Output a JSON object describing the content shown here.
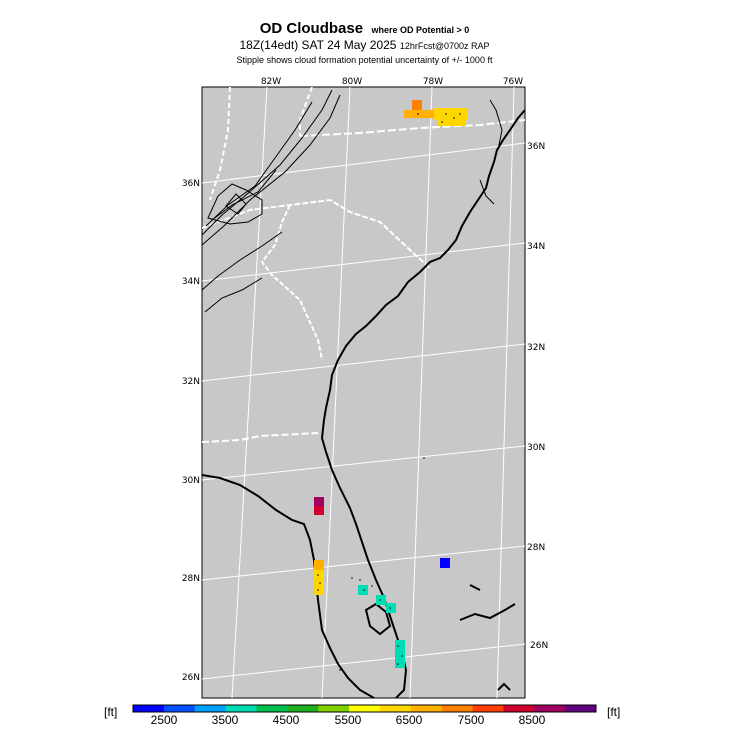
{
  "title": {
    "main": "OD Cloudbase",
    "qualifier": "where OD Potential > 0",
    "valid_time": "18Z(14edt) SAT 24 May 2025",
    "forecast": "12hrFcst@0700z RAP",
    "note": "Stipple shows cloud formation potential uncertainty of +/-  1000 ft"
  },
  "map": {
    "lon_labels": [
      "82W",
      "80W",
      "78W",
      "76W"
    ],
    "lat_labels_left": [
      "36N",
      "34N",
      "32N",
      "30N",
      "28N",
      "26N"
    ],
    "lat_labels_right": [
      "36N",
      "34N",
      "32N",
      "30N",
      "28N",
      "26N"
    ],
    "land_color": "#c8c8c8",
    "line_color": "#000000",
    "boundary_color": "#ffffff"
  },
  "colorbar": {
    "unit_left": "[ft]",
    "unit_right": "[ft]",
    "tick_labels": [
      "2500",
      "3500",
      "4500",
      "5500",
      "6500",
      "7500",
      "8500"
    ],
    "colors": [
      "#0000ff",
      "#0050ff",
      "#00a0ff",
      "#00dcb4",
      "#00c050",
      "#20b020",
      "#80d000",
      "#ffff00",
      "#ffd700",
      "#ffb000",
      "#ff8000",
      "#ff4000",
      "#d00030",
      "#a00060",
      "#600080"
    ]
  }
}
